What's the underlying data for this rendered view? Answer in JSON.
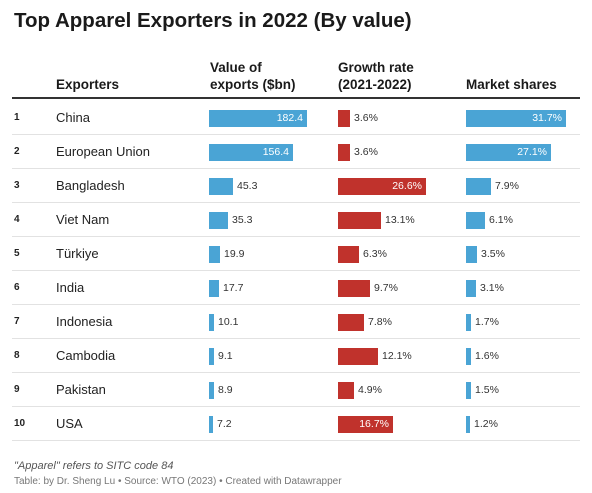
{
  "title": "Top Apparel Exporters in 2022 (By value)",
  "headers": {
    "exporters": "Exporters",
    "value_line1": "Value of",
    "value_line2": "exports ($bn)",
    "growth_line1": "Growth rate",
    "growth_line2": "(2021-2022)",
    "share": "Market shares"
  },
  "chart_data": {
    "type": "table",
    "title": "Top Apparel Exporters in 2022 (By value)",
    "columns": [
      "Exporters",
      "Value of exports ($bn)",
      "Growth rate (2021-2022)",
      "Market shares"
    ],
    "rows": [
      {
        "rank": "1",
        "name": "China",
        "value": 182.4,
        "value_label": "182.4",
        "growth": 3.6,
        "growth_label": "3.6%",
        "share": 31.7,
        "share_label": "31.7%"
      },
      {
        "rank": "2",
        "name": "European Union",
        "value": 156.4,
        "value_label": "156.4",
        "growth": 3.6,
        "growth_label": "3.6%",
        "share": 27.1,
        "share_label": "27.1%"
      },
      {
        "rank": "3",
        "name": "Bangladesh",
        "value": 45.3,
        "value_label": "45.3",
        "growth": 26.6,
        "growth_label": "26.6%",
        "share": 7.9,
        "share_label": "7.9%"
      },
      {
        "rank": "4",
        "name": "Viet Nam",
        "value": 35.3,
        "value_label": "35.3",
        "growth": 13.1,
        "growth_label": "13.1%",
        "share": 6.1,
        "share_label": "6.1%"
      },
      {
        "rank": "5",
        "name": "Türkiye",
        "value": 19.9,
        "value_label": "19.9",
        "growth": 6.3,
        "growth_label": "6.3%",
        "share": 3.5,
        "share_label": "3.5%"
      },
      {
        "rank": "6",
        "name": "India",
        "value": 17.7,
        "value_label": "17.7",
        "growth": 9.7,
        "growth_label": "9.7%",
        "share": 3.1,
        "share_label": "3.1%"
      },
      {
        "rank": "7",
        "name": "Indonesia",
        "value": 10.1,
        "value_label": "10.1",
        "growth": 7.8,
        "growth_label": "7.8%",
        "share": 1.7,
        "share_label": "1.7%"
      },
      {
        "rank": "8",
        "name": "Cambodia",
        "value": 9.1,
        "value_label": "9.1",
        "growth": 12.1,
        "growth_label": "12.1%",
        "share": 1.6,
        "share_label": "1.6%"
      },
      {
        "rank": "9",
        "name": "Pakistan",
        "value": 8.9,
        "value_label": "8.9",
        "growth": 4.9,
        "growth_label": "4.9%",
        "share": 1.5,
        "share_label": "1.5%"
      },
      {
        "rank": "10",
        "name": "USA",
        "value": 7.2,
        "value_label": "7.2",
        "growth": 16.7,
        "growth_label": "16.7%",
        "share": 1.2,
        "share_label": "1.2%"
      }
    ],
    "colors": {
      "value_bar": "#4aa4d5",
      "growth_bar": "#c0322c",
      "share_bar": "#4aa4d5"
    }
  },
  "footer": {
    "note": "\"Apparel\" refers to SITC code 84",
    "credit": "Table: by Dr. Sheng Lu • Source: WTO (2023) • Created with Datawrapper"
  }
}
